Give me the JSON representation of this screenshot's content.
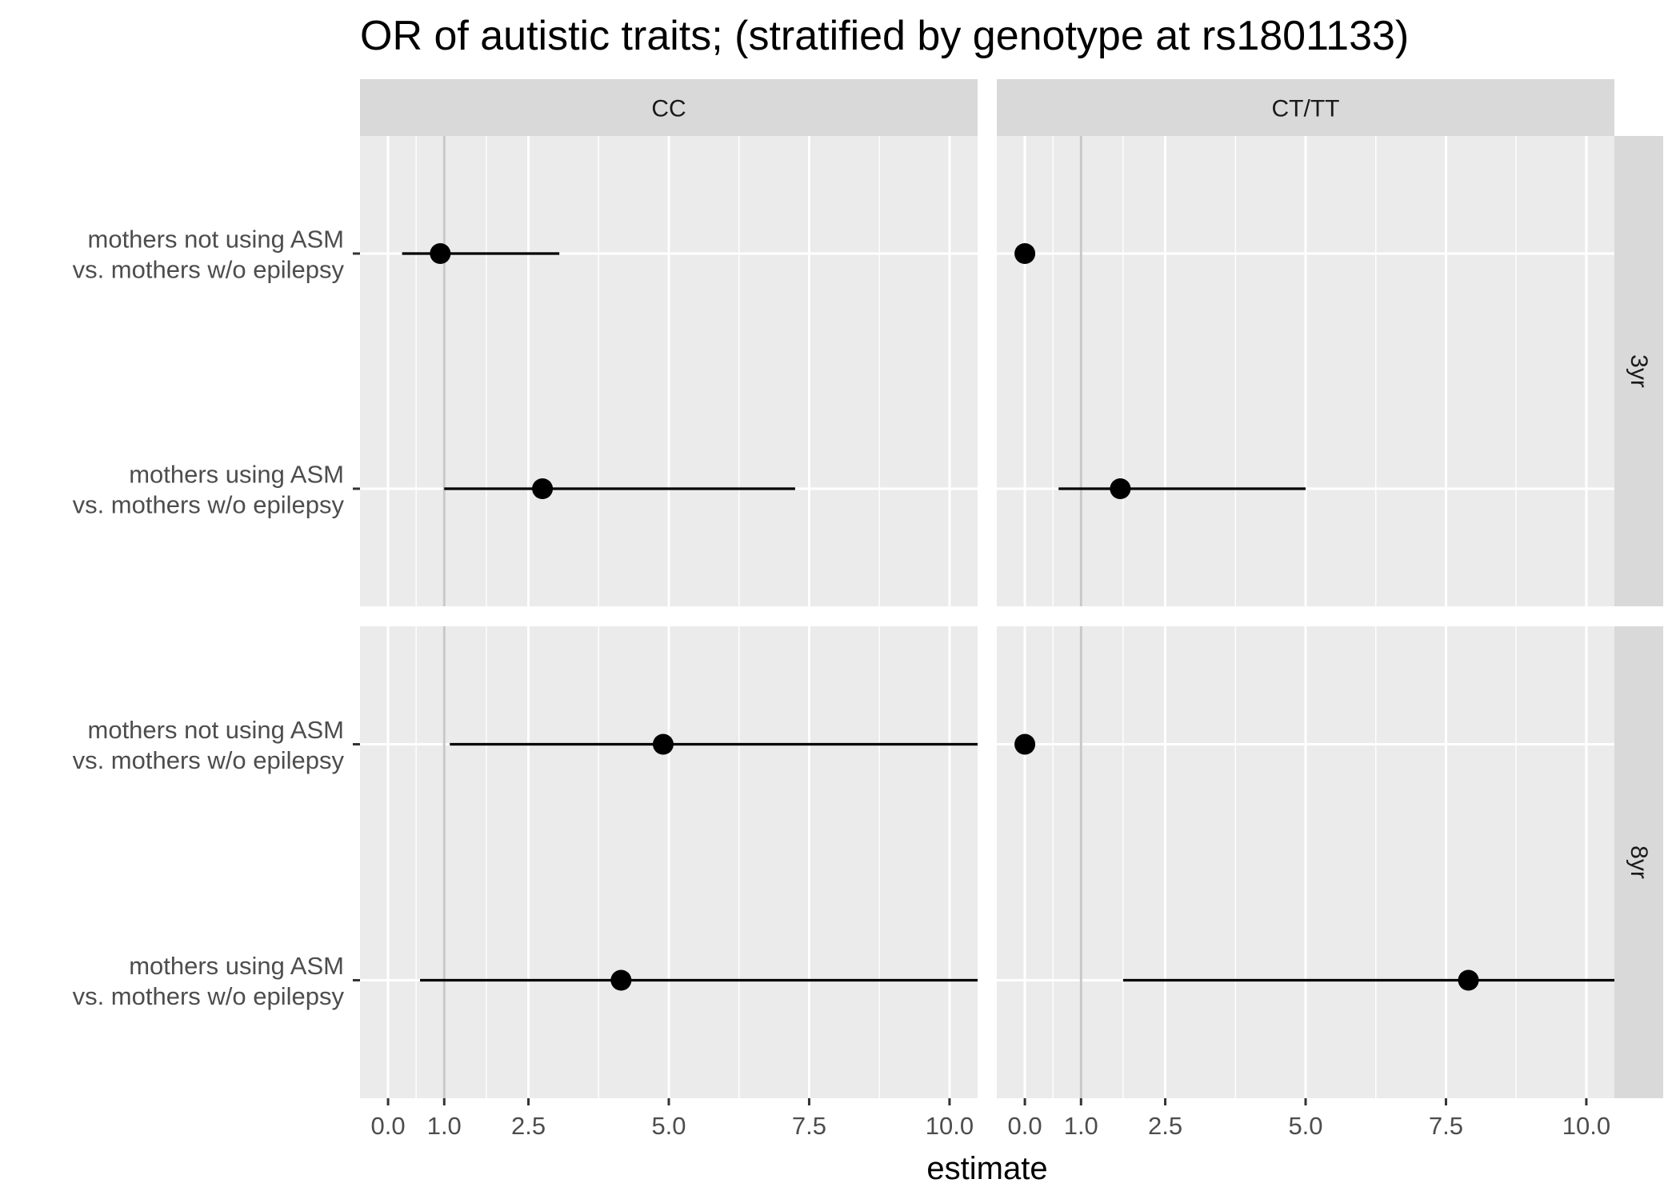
{
  "chart_data": {
    "type": "forest",
    "title": "OR of autistic traits; (stratified by genotype at rs1801133)",
    "xlabel": "estimate",
    "ylabel": "",
    "xlim": [
      -0.5,
      10.5
    ],
    "x_breaks": [
      0,
      1,
      2.5,
      5,
      7.5,
      10
    ],
    "x_tick_labels": [
      "0.0",
      "1.0",
      "2.5",
      "5.0",
      "7.5",
      "10.0"
    ],
    "reference_line": 1,
    "columns": [
      "CC",
      "CT/TT"
    ],
    "rows": [
      "3yr",
      "8yr"
    ],
    "categories": [
      [
        "mothers not using ASM",
        "vs. mothers w/o epilepsy"
      ],
      [
        "mothers using ASM",
        "vs. mothers w/o epilepsy"
      ]
    ],
    "panels": [
      {
        "column": "CC",
        "row": "3yr",
        "points": [
          {
            "category": 0,
            "estimate": 0.93,
            "lower": 0.25,
            "upper": 3.05
          },
          {
            "category": 1,
            "estimate": 2.75,
            "lower": 1.0,
            "upper": 7.25
          }
        ]
      },
      {
        "column": "CT/TT",
        "row": "3yr",
        "points": [
          {
            "category": 0,
            "estimate": 0.0,
            "lower": null,
            "upper": null
          },
          {
            "category": 1,
            "estimate": 1.7,
            "lower": 0.6,
            "upper": 5.0
          }
        ]
      },
      {
        "column": "CC",
        "row": "8yr",
        "points": [
          {
            "category": 0,
            "estimate": 4.9,
            "lower": 1.1,
            "upper": 10.5
          },
          {
            "category": 1,
            "estimate": 4.15,
            "lower": 0.57,
            "upper": 10.5
          }
        ]
      },
      {
        "column": "CT/TT",
        "row": "8yr",
        "points": [
          {
            "category": 0,
            "estimate": 0.0,
            "lower": null,
            "upper": null
          },
          {
            "category": 1,
            "estimate": 7.9,
            "lower": 1.75,
            "upper": 10.5
          }
        ]
      }
    ],
    "grid": true,
    "legend": "none",
    "colors": {
      "panel_background": "#ebebeb",
      "strip_background": "#d9d9d9",
      "grid": "#ffffff",
      "reference_line": "#c8c8c8",
      "points": "#000000"
    }
  }
}
